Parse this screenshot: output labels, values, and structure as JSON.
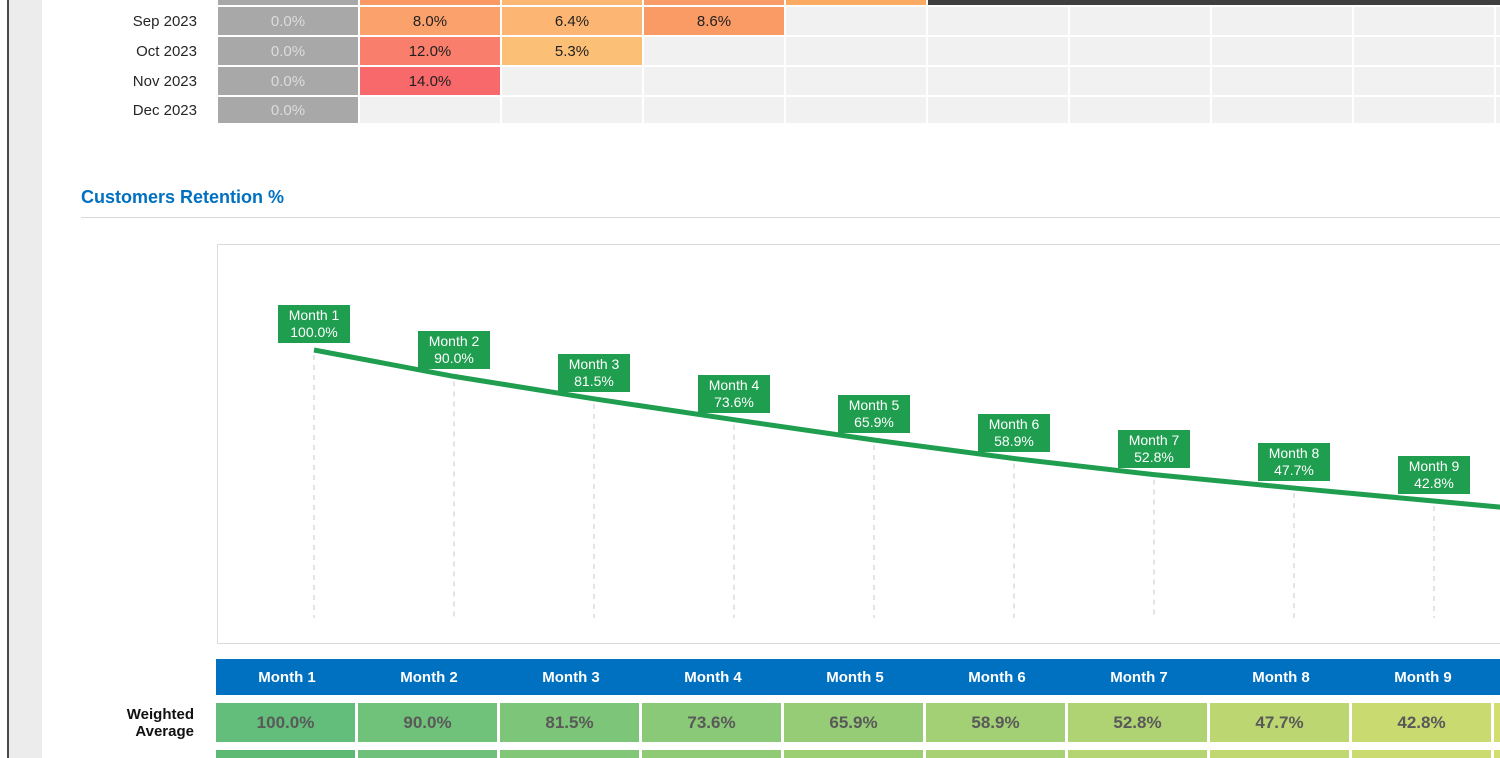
{
  "cohort_table": {
    "empty_cell_color": "#f1f1f1",
    "gray_value_text_color": "#dcdcdc",
    "value_text_color": "#1f1f1f",
    "partial_row": {
      "cell_colors": [
        "#a8a8a8",
        "#fb9964",
        "#fcb873",
        "#fa9c68",
        "#fbaa61"
      ],
      "dark_fill": "#3f3f3f"
    },
    "rows": [
      {
        "label": "Sep 2023",
        "cells": [
          {
            "value": "0.0%",
            "bg": "#a8a8a8",
            "muted": true
          },
          {
            "value": "8.0%",
            "bg": "#fba16b"
          },
          {
            "value": "6.4%",
            "bg": "#fcb572"
          },
          {
            "value": "8.6%",
            "bg": "#fa9b66"
          }
        ]
      },
      {
        "label": "Oct 2023",
        "cells": [
          {
            "value": "0.0%",
            "bg": "#a8a8a8",
            "muted": true
          },
          {
            "value": "12.0%",
            "bg": "#f97f6c"
          },
          {
            "value": "5.3%",
            "bg": "#fcbf76"
          }
        ]
      },
      {
        "label": "Nov 2023",
        "cells": [
          {
            "value": "0.0%",
            "bg": "#a8a8a8",
            "muted": true
          },
          {
            "value": "14.0%",
            "bg": "#f8696b"
          }
        ]
      },
      {
        "label": "Dec 2023",
        "cells": [
          {
            "value": "0.0%",
            "bg": "#a8a8a8",
            "muted": true
          }
        ]
      }
    ]
  },
  "section": {
    "title": "Customers Retention %",
    "title_color": "#0070c0"
  },
  "chart_data": {
    "type": "line",
    "title": "Customers Retention %",
    "categories": [
      "Month 1",
      "Month 2",
      "Month 3",
      "Month 4",
      "Month 5",
      "Month 6",
      "Month 7",
      "Month 8",
      "Month 9"
    ],
    "values": [
      100.0,
      90.0,
      81.5,
      73.6,
      65.9,
      58.9,
      52.8,
      47.7,
      42.8
    ],
    "point_labels": [
      "100.0%",
      "90.0%",
      "81.5%",
      "73.6%",
      "65.9%",
      "58.9%",
      "52.8%",
      "47.7%",
      "42.8%"
    ],
    "line_color": "#1f9e4f",
    "label_box_color": "#1f9e4f",
    "dropline_style": "dashed",
    "dropline_color": "#c8c8c8",
    "legend": "none",
    "xlabel": "",
    "ylabel": ""
  },
  "summary_table": {
    "header_bg": "#0070c0",
    "columns": [
      "Month 1",
      "Month 2",
      "Month 3",
      "Month 4",
      "Month 5",
      "Month 6",
      "Month 7",
      "Month 8",
      "Month 9"
    ],
    "row_label": "Weighted Average",
    "row_label_lines": [
      "Weighted",
      "Average"
    ],
    "values": [
      "100.0%",
      "90.0%",
      "81.5%",
      "73.6%",
      "65.9%",
      "58.9%",
      "52.8%",
      "47.7%",
      "42.8%"
    ],
    "cell_colors": [
      "#63be7b",
      "#70c27a",
      "#7dc578",
      "#89c977",
      "#96cc76",
      "#a3d074",
      "#afd373",
      "#bcd771",
      "#c9da70"
    ],
    "sliver_color": "#d4dd6f",
    "next_row_cell_colors": [
      "#5cba73",
      "#6fc07a",
      "#82c778",
      "#8fca75",
      "#9cce74",
      "#a8d173",
      "#b5d572",
      "#c1d871",
      "#ccdb70"
    ],
    "value_text_color": "#595959"
  }
}
